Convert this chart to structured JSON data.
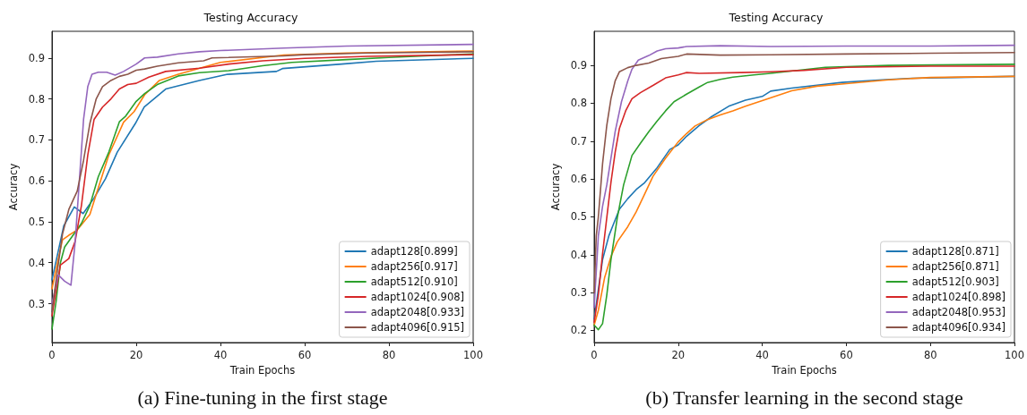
{
  "chart_data": [
    {
      "type": "line",
      "title": "Testing Accuracy",
      "xlabel": "Train Epochs",
      "ylabel": "Accuracy",
      "annotations": [
        "(a) Fine-tuning in the first stage"
      ],
      "xlim": [
        0,
        100
      ],
      "xticks": [
        0,
        20,
        40,
        60,
        80,
        100
      ],
      "ylim": [
        0.205,
        0.965
      ],
      "yticks": [
        0.3,
        0.4,
        0.5,
        0.6,
        0.7,
        0.8,
        0.9
      ],
      "grid": false,
      "legend": "bottom right",
      "marker": "none",
      "line_style": "solid",
      "series": [
        {
          "name": "adapt128[0.899]",
          "color": "#1f77b4",
          "x": [
            0,
            2.8,
            5.3,
            7.4,
            10,
            12.7,
            15.5,
            19.8,
            21.9,
            27,
            35,
            41.7,
            53.3,
            54.7,
            68.8,
            77,
            100
          ],
          "values": [
            0.358,
            0.49,
            0.536,
            0.52,
            0.558,
            0.605,
            0.67,
            0.74,
            0.78,
            0.824,
            0.845,
            0.86,
            0.867,
            0.874,
            0.885,
            0.892,
            0.899
          ]
        },
        {
          "name": "adapt256[0.917]",
          "color": "#ff7f0e",
          "x": [
            0,
            1.5,
            2.5,
            4,
            6,
            9,
            11,
            13.5,
            17,
            19.5,
            22,
            25.5,
            30,
            40,
            55,
            70,
            100
          ],
          "values": [
            0.336,
            0.41,
            0.456,
            0.467,
            0.48,
            0.518,
            0.583,
            0.663,
            0.743,
            0.769,
            0.81,
            0.845,
            0.86,
            0.889,
            0.907,
            0.912,
            0.917
          ]
        },
        {
          "name": "adapt512[0.910]",
          "color": "#2ca02c",
          "x": [
            0,
            1,
            2,
            3,
            5,
            7,
            9,
            11,
            13.5,
            16,
            17.5,
            20,
            22,
            25,
            30,
            35,
            42,
            50,
            57,
            70,
            80,
            100
          ],
          "values": [
            0.238,
            0.307,
            0.4,
            0.438,
            0.467,
            0.496,
            0.54,
            0.61,
            0.67,
            0.744,
            0.758,
            0.794,
            0.813,
            0.835,
            0.856,
            0.864,
            0.869,
            0.881,
            0.889,
            0.896,
            0.901,
            0.91
          ]
        },
        {
          "name": "adapt1024[0.908]",
          "color": "#d62728",
          "x": [
            0,
            2,
            4,
            5.5,
            7,
            8.5,
            10,
            12,
            14,
            16,
            18,
            20,
            23,
            27,
            35,
            42,
            50,
            60,
            75,
            100
          ],
          "values": [
            0.27,
            0.394,
            0.41,
            0.452,
            0.54,
            0.663,
            0.75,
            0.78,
            0.8,
            0.824,
            0.835,
            0.838,
            0.853,
            0.867,
            0.875,
            0.885,
            0.893,
            0.899,
            0.904,
            0.908
          ]
        },
        {
          "name": "adapt2048[0.933]",
          "color": "#9467bd",
          "x": [
            0,
            1.5,
            3,
            4.5,
            5.5,
            6.5,
            7.5,
            8.5,
            9.5,
            11,
            13,
            15,
            17,
            20,
            22,
            25,
            30,
            35,
            40,
            55,
            70,
            100
          ],
          "values": [
            0.3,
            0.37,
            0.355,
            0.345,
            0.45,
            0.6,
            0.75,
            0.83,
            0.86,
            0.865,
            0.865,
            0.858,
            0.867,
            0.885,
            0.9,
            0.902,
            0.91,
            0.915,
            0.918,
            0.924,
            0.929,
            0.933
          ]
        },
        {
          "name": "adapt4096[0.915]",
          "color": "#8c564b",
          "x": [
            0,
            1,
            2.5,
            4,
            6,
            7.5,
            9,
            10.5,
            12,
            14,
            16,
            18,
            20,
            22,
            25,
            30,
            36,
            38,
            55,
            60,
            75,
            100
          ],
          "values": [
            0.28,
            0.36,
            0.47,
            0.53,
            0.575,
            0.65,
            0.74,
            0.8,
            0.83,
            0.845,
            0.855,
            0.86,
            0.87,
            0.873,
            0.88,
            0.888,
            0.893,
            0.9,
            0.905,
            0.908,
            0.912,
            0.915
          ]
        }
      ]
    },
    {
      "type": "line",
      "title": "Testing Accuracy",
      "xlabel": "Train Epochs",
      "ylabel": "Accuracy",
      "annotations": [
        "(b) Transfer learning in the second stage"
      ],
      "xlim": [
        0,
        100
      ],
      "xticks": [
        0,
        20,
        40,
        60,
        80,
        100
      ],
      "ylim": [
        0.168,
        0.99
      ],
      "yticks": [
        0.2,
        0.3,
        0.4,
        0.5,
        0.6,
        0.7,
        0.8,
        0.9
      ],
      "grid": false,
      "legend": "bottom right",
      "marker": "none",
      "line_style": "solid",
      "series": [
        {
          "name": "adapt128[0.871]",
          "color": "#1f77b4",
          "x": [
            0,
            1,
            2,
            3.5,
            6,
            8,
            10,
            12,
            15,
            18,
            20,
            22,
            25,
            28,
            32,
            36,
            40,
            42,
            47,
            59,
            68.5,
            75.6,
            86,
            100
          ],
          "values": [
            0.23,
            0.308,
            0.387,
            0.45,
            0.52,
            0.548,
            0.572,
            0.59,
            0.63,
            0.678,
            0.69,
            0.713,
            0.741,
            0.765,
            0.792,
            0.808,
            0.818,
            0.832,
            0.84,
            0.855,
            0.862,
            0.866,
            0.868,
            0.871
          ]
        },
        {
          "name": "adapt256[0.871]",
          "color": "#ff7f0e",
          "x": [
            0,
            1,
            2.5,
            4,
            5.5,
            8,
            10,
            12,
            14,
            17,
            20,
            22,
            24,
            27,
            30,
            33,
            36,
            40,
            47,
            53,
            60,
            70,
            80,
            100
          ],
          "values": [
            0.214,
            0.253,
            0.34,
            0.395,
            0.434,
            0.474,
            0.513,
            0.56,
            0.607,
            0.655,
            0.698,
            0.72,
            0.74,
            0.757,
            0.769,
            0.78,
            0.792,
            0.807,
            0.833,
            0.845,
            0.852,
            0.862,
            0.868,
            0.871
          ]
        },
        {
          "name": "adapt512[0.903]",
          "color": "#2ca02c",
          "x": [
            0,
            1,
            2,
            3,
            4,
            5.5,
            7,
            9,
            11,
            13,
            15,
            17,
            19,
            22,
            25,
            27,
            30,
            33,
            38,
            42,
            55,
            70,
            100
          ],
          "values": [
            0.214,
            0.202,
            0.218,
            0.293,
            0.387,
            0.497,
            0.584,
            0.662,
            0.694,
            0.725,
            0.753,
            0.78,
            0.804,
            0.824,
            0.843,
            0.855,
            0.863,
            0.869,
            0.875,
            0.879,
            0.895,
            0.9,
            0.903
          ]
        },
        {
          "name": "adapt1024[0.898]",
          "color": "#d62728",
          "x": [
            0,
            1,
            2,
            3,
            4,
            5,
            6,
            7.5,
            9,
            11,
            14,
            17,
            20,
            22,
            25,
            35,
            42,
            50,
            60,
            80,
            100
          ],
          "values": [
            0.222,
            0.293,
            0.403,
            0.497,
            0.591,
            0.67,
            0.733,
            0.78,
            0.812,
            0.828,
            0.847,
            0.867,
            0.875,
            0.881,
            0.879,
            0.881,
            0.883,
            0.887,
            0.895,
            0.898,
            0.898
          ]
        },
        {
          "name": "adapt2048[0.953]",
          "color": "#9467bd",
          "x": [
            0,
            1,
            2,
            3,
            4,
            5,
            6.5,
            8,
            9,
            10.5,
            13,
            15,
            17,
            20,
            22,
            30,
            42,
            60,
            80,
            100
          ],
          "values": [
            0.26,
            0.45,
            0.528,
            0.584,
            0.655,
            0.725,
            0.804,
            0.859,
            0.89,
            0.914,
            0.926,
            0.938,
            0.944,
            0.946,
            0.95,
            0.952,
            0.95,
            0.951,
            0.951,
            0.953
          ]
        },
        {
          "name": "adapt4096[0.934]",
          "color": "#8c564b",
          "x": [
            0,
            0.5,
            1,
            2,
            3,
            4,
            5,
            6,
            8,
            10,
            13,
            16,
            20,
            22,
            30,
            42,
            60,
            80,
            100
          ],
          "values": [
            0.3,
            0.45,
            0.5,
            0.64,
            0.741,
            0.812,
            0.859,
            0.883,
            0.894,
            0.9,
            0.906,
            0.918,
            0.924,
            0.93,
            0.927,
            0.928,
            0.93,
            0.932,
            0.934
          ]
        }
      ]
    }
  ]
}
